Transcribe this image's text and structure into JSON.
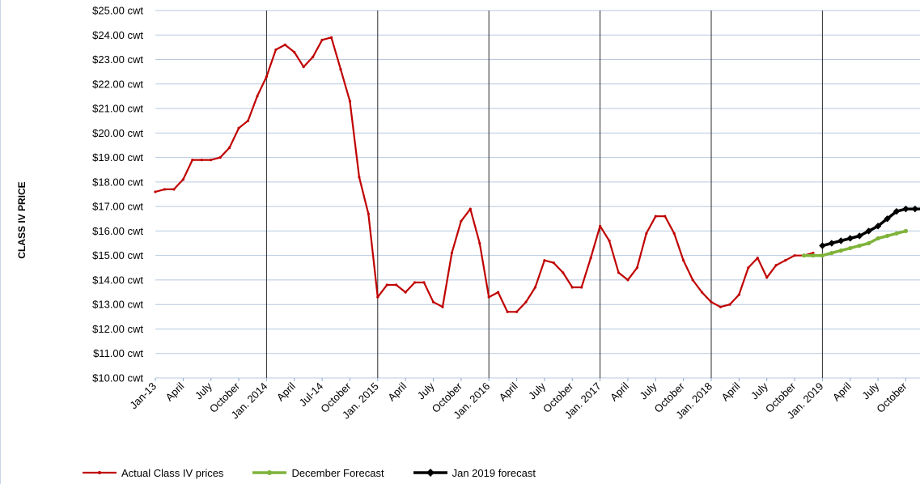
{
  "chart_data": {
    "type": "line",
    "ylabel": "CLASS IV PRICE",
    "xlabel": "",
    "ylim": [
      10,
      25
    ],
    "y_ticks": [
      {
        "value": 25,
        "label": "$25.00 cwt"
      },
      {
        "value": 24,
        "label": "$24.00 cwt"
      },
      {
        "value": 23,
        "label": "$23.00 cwt"
      },
      {
        "value": 22,
        "label": "$22.00 cwt"
      },
      {
        "value": 21,
        "label": "$21.00 cwt"
      },
      {
        "value": 20,
        "label": "$20.00 cwt"
      },
      {
        "value": 19,
        "label": "$19.00 cwt"
      },
      {
        "value": 18,
        "label": "$18.00 cwt"
      },
      {
        "value": 17,
        "label": "$17.00 cwt"
      },
      {
        "value": 16,
        "label": "$16.00 cwt"
      },
      {
        "value": 15,
        "label": "$15.00 cwt"
      },
      {
        "value": 14,
        "label": "$14.00 cwt"
      },
      {
        "value": 13,
        "label": "$13.00 cwt"
      },
      {
        "value": 12,
        "label": "$12.00 cwt"
      },
      {
        "value": 11,
        "label": "$11.00 cwt"
      },
      {
        "value": 10,
        "label": "$10.00 cwt"
      }
    ],
    "x_ticks": [
      {
        "month": "2013-01",
        "label": "Jan-13"
      },
      {
        "month": "2013-04",
        "label": "April"
      },
      {
        "month": "2013-07",
        "label": "July"
      },
      {
        "month": "2013-10",
        "label": "October"
      },
      {
        "month": "2014-01",
        "label": "Jan. 2014"
      },
      {
        "month": "2014-04",
        "label": "April"
      },
      {
        "month": "2014-07",
        "label": "Jul-14"
      },
      {
        "month": "2014-10",
        "label": "October"
      },
      {
        "month": "2015-01",
        "label": "Jan. 2015"
      },
      {
        "month": "2015-04",
        "label": "April"
      },
      {
        "month": "2015-07",
        "label": "July"
      },
      {
        "month": "2015-10",
        "label": "October"
      },
      {
        "month": "2016-01",
        "label": "Jan. 2016"
      },
      {
        "month": "2016-04",
        "label": "April"
      },
      {
        "month": "2016-07",
        "label": "July"
      },
      {
        "month": "2016-10",
        "label": "October"
      },
      {
        "month": "2017-01",
        "label": "Jan. 2017"
      },
      {
        "month": "2017-04",
        "label": "April"
      },
      {
        "month": "2017-07",
        "label": "July"
      },
      {
        "month": "2017-10",
        "label": "October"
      },
      {
        "month": "2018-01",
        "label": "Jan. 2018"
      },
      {
        "month": "2018-04",
        "label": "April"
      },
      {
        "month": "2018-07",
        "label": "July"
      },
      {
        "month": "2018-10",
        "label": "October"
      },
      {
        "month": "2019-01",
        "label": "Jan. 2019"
      },
      {
        "month": "2019-04",
        "label": "April"
      },
      {
        "month": "2019-07",
        "label": "July"
      },
      {
        "month": "2019-10",
        "label": "October"
      }
    ],
    "vertical_lines": [
      "2014-01",
      "2015-01",
      "2016-01",
      "2017-01",
      "2018-01",
      "2019-01"
    ],
    "grid": "horizontal",
    "legend_position": "bottom",
    "series": [
      {
        "name": "Actual Class IV prices",
        "color": "#c00000",
        "x": [
          "2013-01",
          "2013-02",
          "2013-03",
          "2013-04",
          "2013-05",
          "2013-06",
          "2013-07",
          "2013-08",
          "2013-09",
          "2013-10",
          "2013-11",
          "2013-12",
          "2014-01",
          "2014-02",
          "2014-03",
          "2014-04",
          "2014-05",
          "2014-06",
          "2014-07",
          "2014-08",
          "2014-09",
          "2014-10",
          "2014-11",
          "2014-12",
          "2015-01",
          "2015-02",
          "2015-03",
          "2015-04",
          "2015-05",
          "2015-06",
          "2015-07",
          "2015-08",
          "2015-09",
          "2015-10",
          "2015-11",
          "2015-12",
          "2016-01",
          "2016-02",
          "2016-03",
          "2016-04",
          "2016-05",
          "2016-06",
          "2016-07",
          "2016-08",
          "2016-09",
          "2016-10",
          "2016-11",
          "2016-12",
          "2017-01",
          "2017-02",
          "2017-03",
          "2017-04",
          "2017-05",
          "2017-06",
          "2017-07",
          "2017-08",
          "2017-09",
          "2017-10",
          "2017-11",
          "2017-12",
          "2018-01",
          "2018-02",
          "2018-03",
          "2018-04",
          "2018-05",
          "2018-06",
          "2018-07",
          "2018-08",
          "2018-09",
          "2018-10",
          "2018-11",
          "2018-12"
        ],
        "values": [
          17.6,
          17.7,
          17.7,
          18.1,
          18.9,
          18.9,
          18.9,
          19.0,
          19.4,
          20.2,
          20.5,
          21.5,
          22.3,
          23.4,
          23.6,
          23.3,
          22.7,
          23.1,
          23.8,
          23.9,
          22.6,
          21.3,
          18.2,
          16.7,
          13.3,
          13.8,
          13.8,
          13.5,
          13.9,
          13.9,
          13.1,
          12.9,
          15.1,
          16.4,
          16.9,
          15.5,
          13.3,
          13.5,
          12.7,
          12.7,
          13.1,
          13.7,
          14.8,
          14.7,
          14.3,
          13.7,
          13.7,
          14.9,
          16.2,
          15.6,
          14.3,
          14.0,
          14.5,
          15.9,
          16.6,
          16.6,
          15.9,
          14.8,
          14.0,
          13.5,
          13.1,
          12.9,
          13.0,
          13.4,
          14.5,
          14.9,
          14.1,
          14.6,
          14.8,
          15.0,
          15.0,
          15.1
        ]
      },
      {
        "name": "December Forecast",
        "color": "#7fb33a",
        "x": [
          "2018-11",
          "2018-12",
          "2019-01",
          "2019-02",
          "2019-03",
          "2019-04",
          "2019-05",
          "2019-06",
          "2019-07",
          "2019-08",
          "2019-09",
          "2019-10"
        ],
        "values": [
          15.0,
          15.0,
          15.0,
          15.1,
          15.2,
          15.3,
          15.4,
          15.5,
          15.7,
          15.8,
          15.9,
          16.0
        ]
      },
      {
        "name": "Jan 2019 forecast",
        "color": "#000000",
        "x": [
          "2019-01",
          "2019-02",
          "2019-03",
          "2019-04",
          "2019-05",
          "2019-06",
          "2019-07",
          "2019-08",
          "2019-09",
          "2019-10",
          "2019-11",
          "2019-12"
        ],
        "values": [
          15.4,
          15.5,
          15.6,
          15.7,
          15.8,
          16.0,
          16.2,
          16.5,
          16.8,
          16.9,
          16.9,
          16.9
        ]
      }
    ]
  }
}
